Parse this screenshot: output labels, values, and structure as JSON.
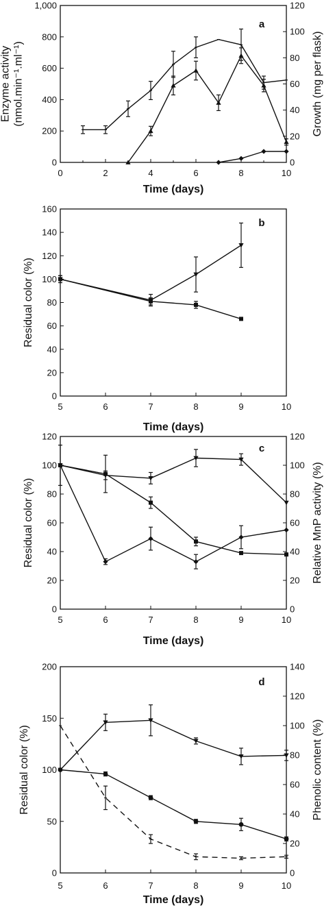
{
  "chart_data": [
    {
      "type": "line",
      "panel_label": "a",
      "xlabel": "Time (days)",
      "ylabel": "Enzyme activity\n(nmol.min⁻¹.ml⁻¹)",
      "y2label": "Growth (mg per flask)",
      "xlim": [
        0,
        10
      ],
      "ylim": [
        0,
        1000
      ],
      "y2lim": [
        0,
        120
      ],
      "xticks": [
        "0",
        "2",
        "4",
        "6",
        "8",
        "10"
      ],
      "yticks": [
        "0",
        "200",
        "400",
        "600",
        "800",
        "1,000"
      ],
      "y2ticks": [
        "0",
        "20",
        "40",
        "60",
        "80",
        "100",
        "120"
      ],
      "series": [
        {
          "axis": "right",
          "marker": "tick",
          "x": [
            1,
            2,
            3,
            4,
            5,
            6,
            7,
            8,
            9,
            10
          ],
          "y": [
            25,
            25,
            41,
            55,
            75,
            88,
            94,
            90,
            61,
            63
          ],
          "err": [
            3,
            3,
            6,
            7,
            10,
            8,
            0,
            12,
            5,
            0
          ]
        },
        {
          "axis": "left",
          "marker": "triangle",
          "x": [
            3,
            4,
            5,
            6,
            7,
            8,
            9,
            10
          ],
          "y": [
            0,
            200,
            490,
            585,
            380,
            680,
            490,
            130
          ],
          "err": [
            0,
            30,
            60,
            60,
            50,
            50,
            40,
            20
          ]
        },
        {
          "axis": "left",
          "marker": "diamond",
          "x": [
            7,
            8,
            9,
            10
          ],
          "y": [
            0,
            25,
            70,
            70
          ],
          "err": [
            0,
            0,
            0,
            0
          ]
        }
      ]
    },
    {
      "type": "line",
      "panel_label": "b",
      "xlabel": "Time (days)",
      "ylabel": "Residual color (%)",
      "xlim": [
        5,
        10
      ],
      "ylim": [
        0,
        160
      ],
      "xticks": [
        "5",
        "6",
        "7",
        "8",
        "9",
        "10"
      ],
      "yticks": [
        "0",
        "20",
        "40",
        "60",
        "80",
        "100",
        "120",
        "140",
        "160"
      ],
      "series": [
        {
          "marker": "triangle-down",
          "x": [
            5,
            7,
            8,
            9
          ],
          "y": [
            100,
            82,
            104,
            129
          ],
          "err": [
            3,
            5,
            15,
            19
          ]
        },
        {
          "marker": "square",
          "x": [
            5,
            7,
            8,
            9
          ],
          "y": [
            100,
            81,
            78,
            66
          ],
          "err": [
            3,
            3,
            3,
            0
          ]
        }
      ]
    },
    {
      "type": "line",
      "panel_label": "c",
      "xlabel": "Time (days)",
      "ylabel": "Residual color (%)",
      "y2label": "Relative MnP activity (%)",
      "xlim": [
        5,
        10
      ],
      "ylim": [
        0,
        120
      ],
      "y2lim": [
        0,
        120
      ],
      "xticks": [
        "5",
        "6",
        "7",
        "8",
        "9",
        "10"
      ],
      "yticks": [
        "0",
        "20",
        "40",
        "60",
        "80",
        "100",
        "120"
      ],
      "y2ticks": [
        "0",
        "20",
        "40",
        "60",
        "80",
        "100",
        "120"
      ],
      "series": [
        {
          "axis": "left",
          "marker": "triangle-down",
          "x": [
            5,
            6,
            7,
            8,
            9,
            10
          ],
          "y": [
            100,
            93,
            91,
            105,
            104,
            74
          ],
          "err": [
            0,
            3,
            4,
            6,
            4,
            0
          ]
        },
        {
          "axis": "left",
          "marker": "square",
          "x": [
            5,
            6,
            7,
            8,
            9,
            10
          ],
          "y": [
            100,
            94,
            74,
            47,
            39,
            38
          ],
          "err": [
            14,
            13,
            4,
            3,
            0,
            0
          ]
        },
        {
          "axis": "right",
          "marker": "diamond",
          "x": [
            5,
            6,
            7,
            8,
            9,
            10
          ],
          "y": [
            100,
            33,
            49,
            33,
            50,
            55
          ],
          "err": [
            0,
            2,
            8,
            5,
            8,
            0
          ]
        }
      ]
    },
    {
      "type": "line",
      "panel_label": "d",
      "xlabel": "Time (days)",
      "ylabel": "Residual color (%)",
      "y2label": "Phenolic content (%)",
      "xlim": [
        5,
        10
      ],
      "ylim": [
        0,
        200
      ],
      "y2lim": [
        0,
        140
      ],
      "xticks": [
        "5",
        "6",
        "7",
        "8",
        "9",
        "10"
      ],
      "yticks": [
        "0",
        "50",
        "100",
        "150",
        "200"
      ],
      "y2ticks": [
        "0",
        "20",
        "40",
        "60",
        "80",
        "100",
        "120",
        "140"
      ],
      "series": [
        {
          "axis": "left",
          "marker": "triangle-down",
          "x": [
            5,
            6,
            7,
            8,
            9,
            10
          ],
          "y": [
            100,
            146,
            148,
            128,
            113,
            114
          ],
          "err": [
            0,
            8,
            15,
            3,
            8,
            5
          ]
        },
        {
          "axis": "left",
          "marker": "circle",
          "x": [
            5,
            6,
            7,
            8,
            9,
            10
          ],
          "y": [
            100,
            96,
            73,
            50,
            47,
            33
          ],
          "err": [
            0,
            2,
            2,
            2,
            6,
            2
          ]
        },
        {
          "axis": "right",
          "marker": "none",
          "dash": true,
          "x": [
            5,
            6,
            7,
            8,
            9,
            10
          ],
          "y": [
            100,
            51,
            23,
            11,
            10,
            11
          ],
          "err": [
            0,
            8,
            3,
            2,
            1,
            1
          ]
        }
      ]
    }
  ]
}
